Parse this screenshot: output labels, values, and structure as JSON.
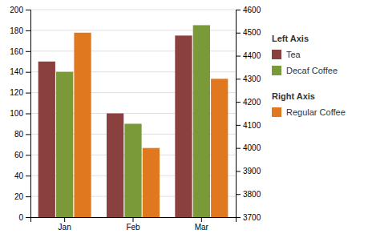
{
  "chart_data": {
    "type": "bar",
    "categories": [
      "Jan",
      "Feb",
      "Mar"
    ],
    "series": [
      {
        "name": "Tea",
        "color": "#8B4040",
        "values": [
          150,
          100,
          175
        ],
        "axis": "y"
      },
      {
        "name": "Decaf Coffee",
        "color": "#7A9A3A",
        "values": [
          140,
          90,
          185
        ],
        "axis": "y"
      },
      {
        "name": "Regular Coffee",
        "color": "#E07820",
        "values": [
          4500,
          4000,
          4300
        ],
        "axis": "y2"
      }
    ],
    "ylabel": "Left Axis",
    "y2label": "Right Axis",
    "ylim": [
      0,
      200
    ],
    "yticks": [
      0,
      20,
      40,
      60,
      80,
      100,
      120,
      140,
      160,
      180,
      200
    ],
    "y2lim": [
      3700,
      4600
    ],
    "y2ticks": [
      3700,
      3800,
      3900,
      4000,
      4100,
      4200,
      4300,
      4400,
      4500,
      4600
    ],
    "grid": true,
    "legend": "right"
  }
}
